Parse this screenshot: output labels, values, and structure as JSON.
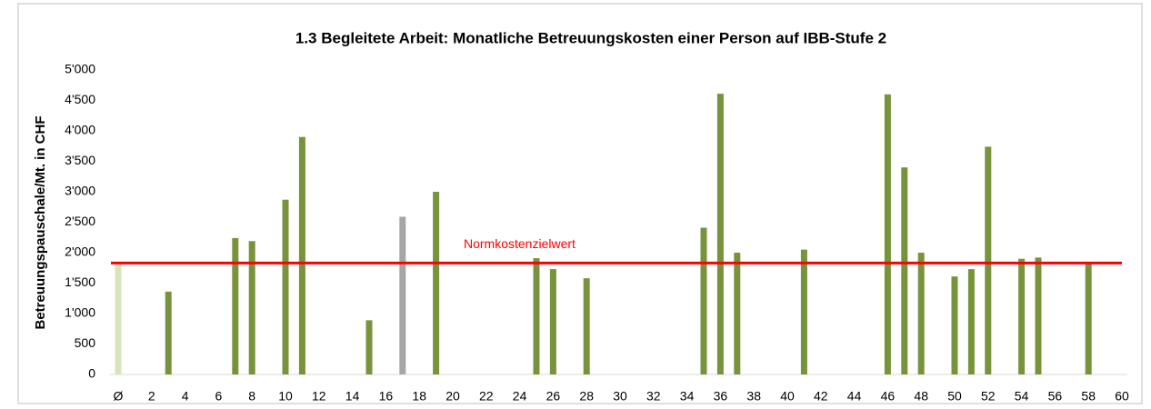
{
  "chart_data": {
    "type": "bar",
    "title": "1.3  Begleitete Arbeit: Monatliche Betreuungskosten einer Person auf IBB-Stufe 2",
    "y_label": "Betreuungspauschale/Mt. in CHF",
    "categories": [
      "Ø",
      null,
      "2",
      null,
      "4",
      null,
      "6",
      null,
      "8",
      null,
      "10",
      null,
      "12",
      null,
      "14",
      null,
      "16",
      null,
      "18",
      null,
      "20",
      null,
      "22",
      null,
      "24",
      null,
      "26",
      null,
      "28",
      null,
      "30",
      null,
      "32",
      null,
      "34",
      null,
      "36",
      null,
      "38",
      null,
      "40",
      null,
      "42",
      null,
      "44",
      null,
      "46",
      null,
      "48",
      null,
      "50",
      null,
      "52",
      null,
      "54",
      null,
      "56",
      null,
      "58",
      null,
      "60"
    ],
    "values": [
      1820,
      null,
      null,
      1360,
      null,
      null,
      null,
      2240,
      2190,
      null,
      2870,
      3900,
      null,
      null,
      null,
      890,
      null,
      2590,
      null,
      3000,
      null,
      null,
      null,
      null,
      null,
      1910,
      1730,
      null,
      1580,
      null,
      null,
      null,
      null,
      null,
      null,
      2410,
      4610,
      2000,
      null,
      null,
      null,
      2050,
      null,
      null,
      null,
      null,
      4600,
      3400,
      2000,
      null,
      1610,
      1730,
      3740,
      null,
      1900,
      1920,
      null,
      null,
      1830,
      null,
      null
    ],
    "color": "#77933c",
    "colors": [
      "#d7e4bd",
      null,
      null,
      "#77933c",
      null,
      null,
      null,
      "#77933c",
      "#77933c",
      null,
      "#77933c",
      "#77933c",
      null,
      null,
      null,
      "#77933c",
      null,
      "#a6a6a6",
      null,
      "#77933c",
      null,
      null,
      null,
      null,
      null,
      "#77933c",
      "#77933c",
      null,
      "#77933c",
      null,
      null,
      null,
      null,
      null,
      null,
      "#77933c",
      "#77933c",
      "#77933c",
      null,
      null,
      null,
      "#77933c",
      null,
      null,
      null,
      null,
      "#77933c",
      "#77933c",
      "#77933c",
      null,
      "#77933c",
      "#77933c",
      "#77933c",
      null,
      "#77933c",
      "#77933c",
      null,
      null,
      "#77933c",
      null,
      null
    ],
    "ylim": [
      0,
      5000
    ],
    "yticks": [
      0,
      500,
      {
        "value": 1000,
        "label": "1'000"
      },
      {
        "value": 1500,
        "label": "1'500"
      },
      {
        "value": 2000,
        "label": "2'000"
      },
      {
        "value": 2500,
        "label": "2'500"
      },
      {
        "value": 3000,
        "label": "3'000"
      },
      {
        "value": 3500,
        "label": "3'500"
      },
      {
        "value": 4000,
        "label": "4'000"
      },
      {
        "value": 4500,
        "label": "4'500"
      },
      {
        "value": 5000,
        "label": "5'000"
      }
    ],
    "grid": false,
    "reference_line": {
      "value": 1830,
      "label": "Normkostenzielwert",
      "color": "#ff0000"
    }
  }
}
